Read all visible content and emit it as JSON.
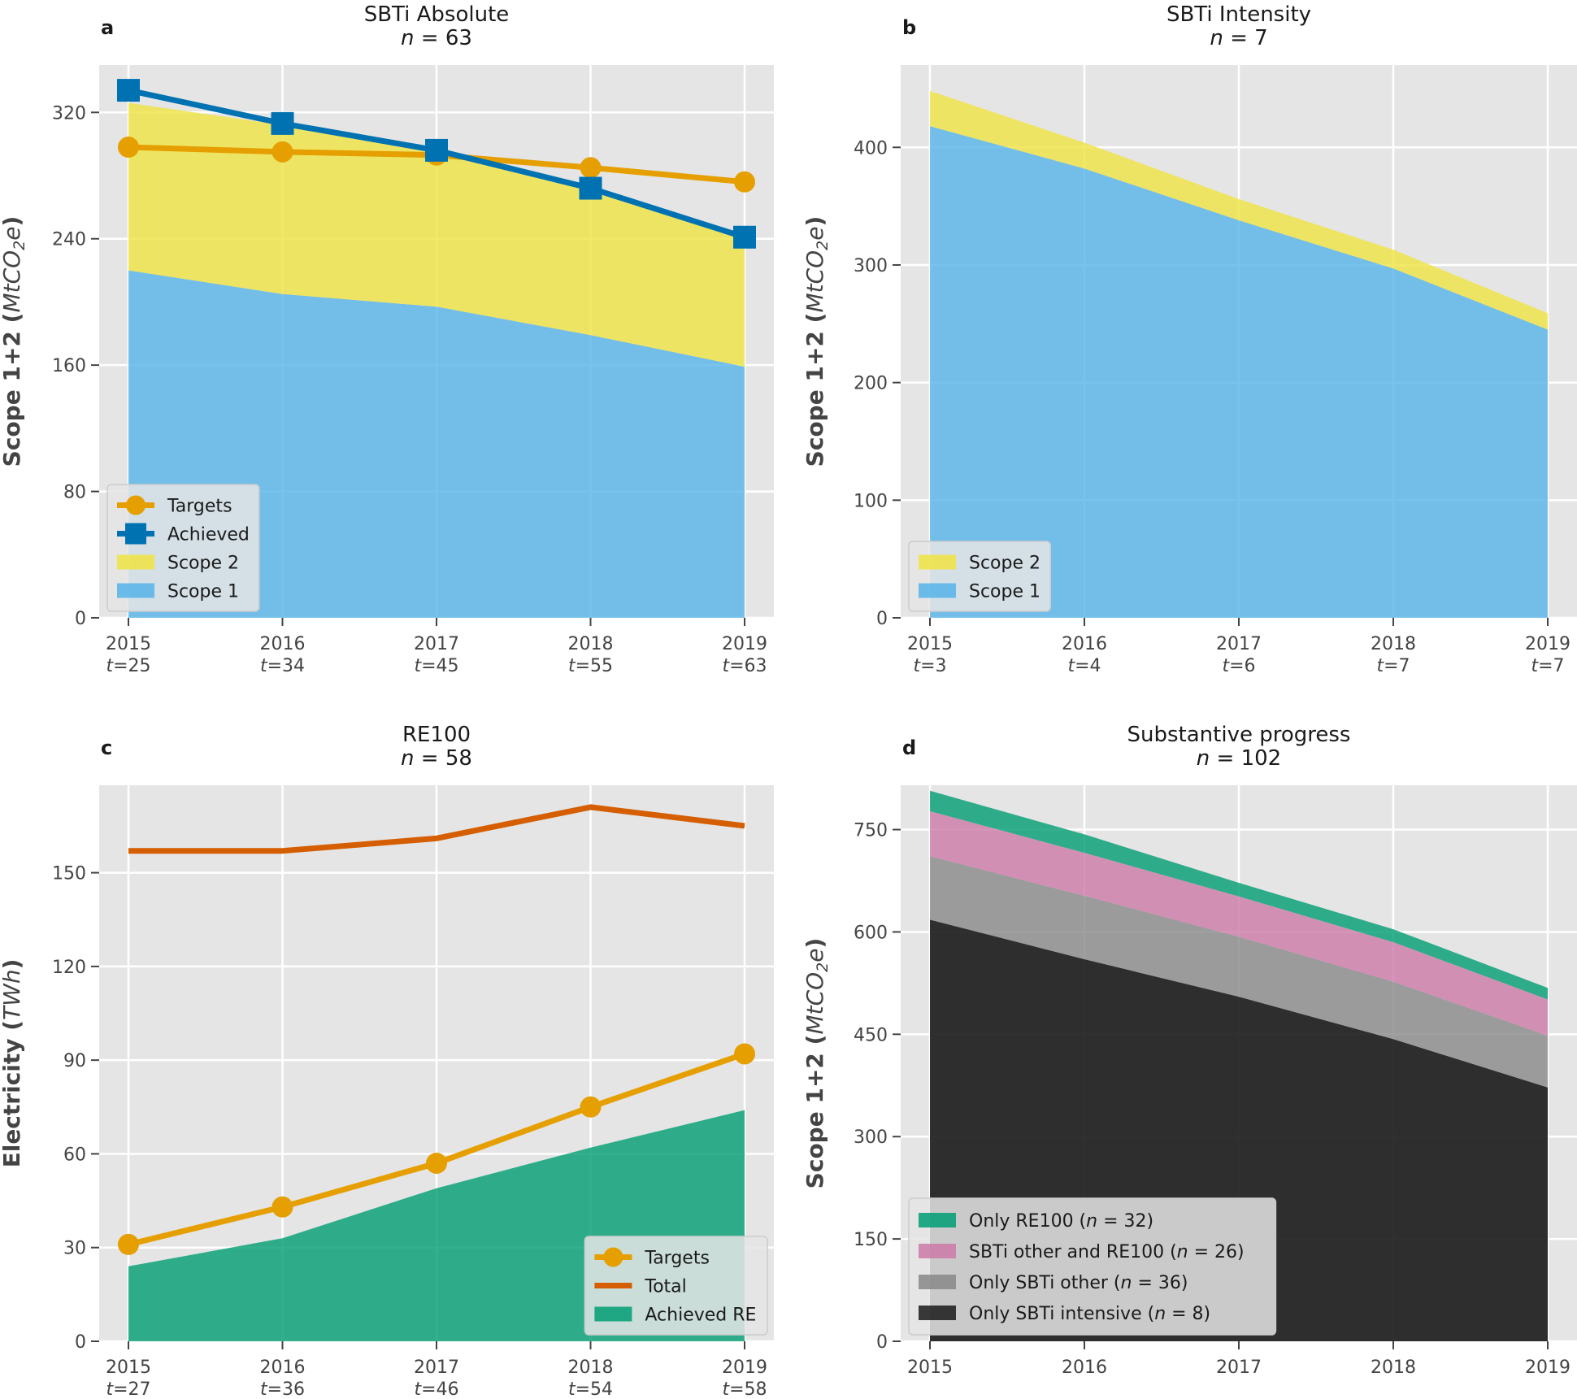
{
  "colors": {
    "scope1": "#56B4E9",
    "scope2": "#F0E442",
    "targets": "#E69F00",
    "achieved": "#0072B2",
    "total": "#D55E00",
    "re": "#009E73",
    "only_re100": "#009E73",
    "sbti_other_re100": "#CC79A7",
    "only_sbti_other": "#888888",
    "only_sbti_intensive": "#1a1a1a"
  },
  "chart_data": [
    {
      "id": "a",
      "panel_label": "a",
      "title": "SBTi Absolute",
      "subtitle": "n = 63",
      "type": "area",
      "ylabel": "Scope 1+2 (MtCO2e)",
      "ylim": [
        0,
        350
      ],
      "yticks": [
        0,
        80,
        160,
        240,
        320
      ],
      "categories": [
        "2015",
        "2016",
        "2017",
        "2018",
        "2019"
      ],
      "sublabels": [
        "t=25",
        "t=34",
        "t=45",
        "t=55",
        "t=63"
      ],
      "stacked_series": [
        {
          "name": "Scope 1",
          "values": [
            220,
            205,
            197,
            179,
            159
          ],
          "color": "scope1"
        },
        {
          "name": "Scope 2",
          "values": [
            106,
            107,
            101,
            92,
            82
          ],
          "color": "scope2"
        }
      ],
      "line_series": [
        {
          "name": "Targets",
          "values": [
            298,
            295,
            293,
            285,
            276
          ],
          "color": "targets",
          "marker": "circle"
        },
        {
          "name": "Achieved",
          "values": [
            334,
            313,
            296,
            272,
            241
          ],
          "color": "achieved",
          "marker": "square"
        }
      ],
      "legend": [
        {
          "label": "Targets",
          "kind": "line-circle",
          "color": "targets"
        },
        {
          "label": "Achieved",
          "kind": "line-square",
          "color": "achieved"
        },
        {
          "label": "Scope 2",
          "kind": "patch",
          "color": "scope2"
        },
        {
          "label": "Scope 1",
          "kind": "patch",
          "color": "scope1"
        }
      ],
      "legend_position": "lower-left",
      "grid": true
    },
    {
      "id": "b",
      "panel_label": "b",
      "title": "SBTi Intensity",
      "subtitle": "n = 7",
      "type": "area",
      "ylabel": "Scope 1+2 (MtCO2e)",
      "ylim": [
        0,
        470
      ],
      "yticks": [
        0,
        100,
        200,
        300,
        400
      ],
      "categories": [
        "2015",
        "2016",
        "2017",
        "2018",
        "2019"
      ],
      "sublabels": [
        "t=3",
        "t=4",
        "t=6",
        "t=7",
        "t=7"
      ],
      "stacked_series": [
        {
          "name": "Scope 1",
          "values": [
            418,
            382,
            338,
            297,
            245
          ],
          "color": "scope1"
        },
        {
          "name": "Scope 2",
          "values": [
            30,
            22,
            18,
            16,
            14
          ],
          "color": "scope2"
        }
      ],
      "line_series": [],
      "legend": [
        {
          "label": "Scope 2",
          "kind": "patch",
          "color": "scope2"
        },
        {
          "label": "Scope 1",
          "kind": "patch",
          "color": "scope1"
        }
      ],
      "legend_position": "lower-left",
      "grid": true
    },
    {
      "id": "c",
      "panel_label": "c",
      "title": "RE100",
      "subtitle": "n = 58",
      "type": "area",
      "ylabel": "Electricity (TWh)",
      "ylim": [
        0,
        178
      ],
      "yticks": [
        0,
        30,
        60,
        90,
        120,
        150
      ],
      "categories": [
        "2015",
        "2016",
        "2017",
        "2018",
        "2019"
      ],
      "sublabels": [
        "t=27",
        "t=36",
        "t=46",
        "t=54",
        "t=58"
      ],
      "stacked_series": [
        {
          "name": "Achieved RE",
          "values": [
            24,
            33,
            49,
            62,
            74
          ],
          "color": "re"
        }
      ],
      "line_series": [
        {
          "name": "Targets",
          "values": [
            31,
            43,
            57,
            75,
            92
          ],
          "color": "targets",
          "marker": "circle"
        },
        {
          "name": "Total",
          "values": [
            157,
            157,
            161,
            171,
            165
          ],
          "color": "total",
          "marker": "none"
        }
      ],
      "legend": [
        {
          "label": "Targets",
          "kind": "line-circle",
          "color": "targets"
        },
        {
          "label": "Total",
          "kind": "line",
          "color": "total"
        },
        {
          "label": "Achieved RE",
          "kind": "patch",
          "color": "re"
        }
      ],
      "legend_position": "lower-right",
      "grid": true
    },
    {
      "id": "d",
      "panel_label": "d",
      "title": "Substantive progress",
      "subtitle": "n = 102",
      "type": "area",
      "ylabel": "Scope 1+2 (MtCO2e)",
      "ylim": [
        0,
        815
      ],
      "yticks": [
        0,
        150,
        300,
        450,
        600,
        750
      ],
      "categories": [
        "2015",
        "2016",
        "2017",
        "2018",
        "2019"
      ],
      "sublabels": [],
      "stacked_series": [
        {
          "name": "Only SBTi intensive (n = 8)",
          "values": [
            618,
            560,
            505,
            443,
            372
          ],
          "color": "only_sbti_intensive"
        },
        {
          "name": "Only SBTi other (n = 36)",
          "values": [
            93,
            93,
            88,
            84,
            76
          ],
          "color": "only_sbti_other"
        },
        {
          "name": "SBTi other and RE100 (n = 26)",
          "values": [
            66,
            63,
            59,
            58,
            53
          ],
          "color": "sbti_other_re100"
        },
        {
          "name": "Only RE100 (n = 32)",
          "values": [
            30,
            27,
            20,
            19,
            17
          ],
          "color": "only_re100"
        }
      ],
      "line_series": [],
      "legend": [
        {
          "label": "Only RE100 (n = 32)",
          "kind": "patch",
          "color": "only_re100"
        },
        {
          "label": "SBTi other and RE100 (n = 26)",
          "kind": "patch",
          "color": "sbti_other_re100"
        },
        {
          "label": "Only SBTi other (n = 36)",
          "kind": "patch",
          "color": "only_sbti_other"
        },
        {
          "label": "Only SBTi intensive (n = 8)",
          "kind": "patch",
          "color": "only_sbti_intensive"
        }
      ],
      "legend_position": "lower-left",
      "grid": true
    }
  ]
}
